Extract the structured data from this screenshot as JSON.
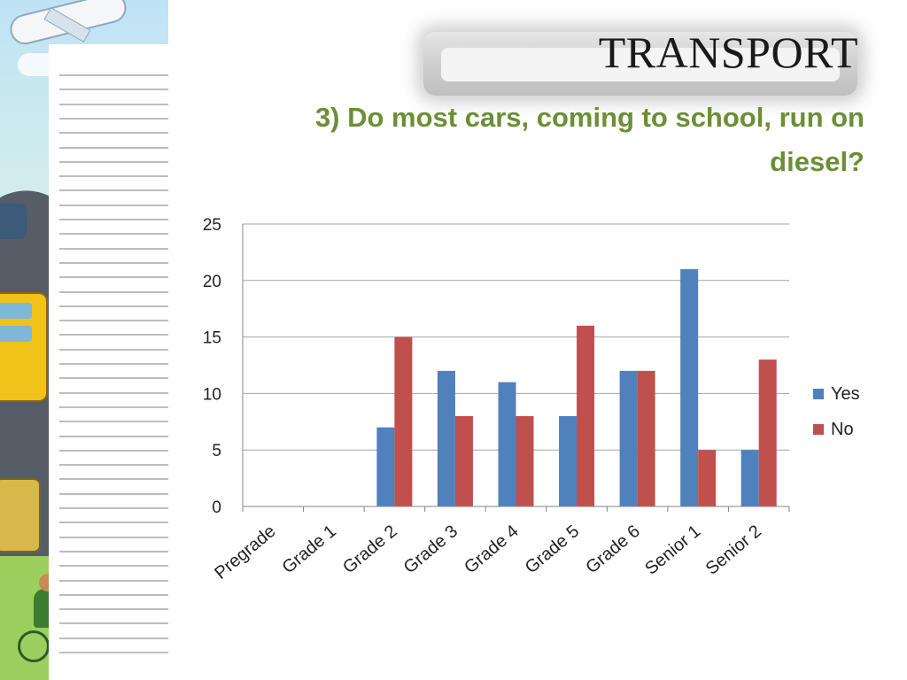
{
  "slide": {
    "title": "TRANSPORT",
    "question": "3) Do most cars, coming to school, run on diesel?"
  },
  "colors": {
    "yes": "#4f81bd",
    "no": "#c0504d",
    "question_text": "#6b8f35",
    "gridline": "#a6a6a6"
  },
  "chart_data": {
    "type": "bar",
    "categories": [
      "Pregrade",
      "Grade 1",
      "Grade 2",
      "Grade 3",
      "Grade 4",
      "Grade 5",
      "Grade 6",
      "Senior 1",
      "Senior 2"
    ],
    "series": [
      {
        "name": "Yes",
        "values": [
          0,
          0,
          7,
          12,
          11,
          8,
          12,
          21,
          5
        ]
      },
      {
        "name": "No",
        "values": [
          0,
          0,
          15,
          8,
          8,
          16,
          12,
          5,
          13
        ]
      }
    ],
    "ylim": [
      0,
      25
    ],
    "yticks": [
      0,
      5,
      10,
      15,
      20,
      25
    ],
    "grid": true,
    "legend_position": "right"
  }
}
